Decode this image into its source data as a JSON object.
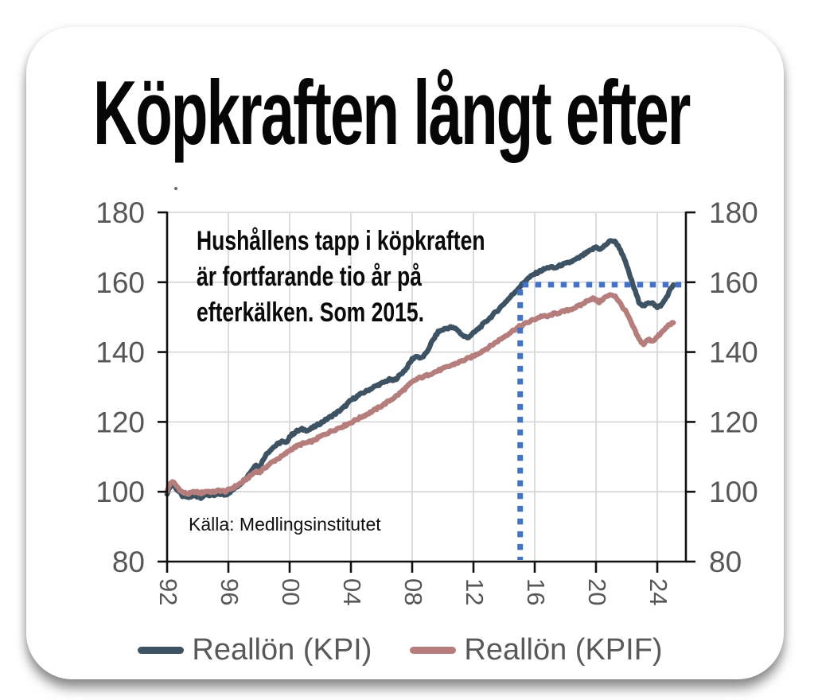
{
  "card": {
    "title": "Köpkraften långt efter",
    "annotation": "Hushållens tapp i köpkraften\när fortfarande tio år på\nefterkälken. Som 2015.",
    "source": "Källa: Medlingsinstitutet"
  },
  "chart_data": {
    "type": "line",
    "title": "Köpkraften långt efter",
    "annotation": "Hushållens tapp i köpkraften är fortfarande tio år på efterkälken. Som 2015.",
    "source": "Källa: Medlingsinstitutet",
    "x_range": [
      1992,
      2026
    ],
    "y_range": [
      80,
      180
    ],
    "grid": true,
    "legend_position": "bottom",
    "y_ticks": [
      80,
      100,
      120,
      140,
      160,
      180
    ],
    "x_ticks": [
      {
        "year": 1992,
        "label": "92"
      },
      {
        "year": 1996,
        "label": "96"
      },
      {
        "year": 2000,
        "label": "00"
      },
      {
        "year": 2004,
        "label": "04"
      },
      {
        "year": 2008,
        "label": "08"
      },
      {
        "year": 2012,
        "label": "12"
      },
      {
        "year": 2016,
        "label": "16"
      },
      {
        "year": 2020,
        "label": "20"
      },
      {
        "year": 2024,
        "label": "24"
      }
    ],
    "colors": {
      "kpi_line": "#3d5262",
      "kpif_line": "#b57e7c",
      "reference_dash": "#4472c4",
      "grid": "#d8d8d8",
      "axis": "#111111",
      "tick_labels": "#575757"
    },
    "reference_lines": {
      "style": "dashed",
      "color": "#4472c4",
      "x": 2015.05,
      "y": 159.3
    },
    "series": [
      {
        "name": "Reallön (KPI)",
        "color": "#3d5262",
        "points": [
          [
            1992.0,
            99.3
          ],
          [
            1992.2,
            101.6
          ],
          [
            1992.35,
            102.3
          ],
          [
            1992.6,
            100.9
          ],
          [
            1993.0,
            98.8
          ],
          [
            1993.4,
            98.4
          ],
          [
            1993.8,
            98.9
          ],
          [
            1994.2,
            98.4
          ],
          [
            1994.6,
            99.2
          ],
          [
            1995.0,
            98.8
          ],
          [
            1995.4,
            99.4
          ],
          [
            1995.8,
            99.1
          ],
          [
            1996.2,
            100.2
          ],
          [
            1996.6,
            101.6
          ],
          [
            1997.0,
            103.2
          ],
          [
            1997.4,
            105.4
          ],
          [
            1997.8,
            107.8
          ],
          [
            1998.05,
            107.2
          ],
          [
            1998.4,
            110.3
          ],
          [
            1998.8,
            112.3
          ],
          [
            1999.2,
            113.6
          ],
          [
            1999.5,
            114.4
          ],
          [
            1999.75,
            113.9
          ],
          [
            2000.0,
            115.8
          ],
          [
            2000.4,
            117.2
          ],
          [
            2000.8,
            117.9
          ],
          [
            2001.2,
            117.6
          ],
          [
            2001.5,
            118.3
          ],
          [
            2002.0,
            119.6
          ],
          [
            2002.5,
            121.0
          ],
          [
            2003.0,
            122.4
          ],
          [
            2003.5,
            124.0
          ],
          [
            2004.0,
            126.2
          ],
          [
            2004.5,
            127.6
          ],
          [
            2005.0,
            128.8
          ],
          [
            2005.5,
            130.0
          ],
          [
            2006.0,
            131.0
          ],
          [
            2006.5,
            132.1
          ],
          [
            2006.8,
            131.8
          ],
          [
            2007.2,
            133.4
          ],
          [
            2007.6,
            135.2
          ],
          [
            2008.0,
            138.0
          ],
          [
            2008.3,
            138.9
          ],
          [
            2008.55,
            138.1
          ],
          [
            2008.9,
            139.5
          ],
          [
            2009.3,
            143.0
          ],
          [
            2009.7,
            145.8
          ],
          [
            2010.1,
            146.6
          ],
          [
            2010.5,
            147.1
          ],
          [
            2010.9,
            146.6
          ],
          [
            2011.3,
            144.7
          ],
          [
            2011.6,
            144.1
          ],
          [
            2012.0,
            145.4
          ],
          [
            2012.5,
            147.4
          ],
          [
            2013.0,
            149.5
          ],
          [
            2013.5,
            151.6
          ],
          [
            2014.0,
            153.9
          ],
          [
            2014.5,
            156.2
          ],
          [
            2015.0,
            158.6
          ],
          [
            2015.5,
            160.9
          ],
          [
            2016.0,
            162.4
          ],
          [
            2016.5,
            163.5
          ],
          [
            2017.0,
            164.4
          ],
          [
            2017.3,
            164.0
          ],
          [
            2017.7,
            164.9
          ],
          [
            2018.1,
            165.4
          ],
          [
            2018.5,
            166.1
          ],
          [
            2018.9,
            167.0
          ],
          [
            2019.3,
            168.2
          ],
          [
            2019.7,
            169.2
          ],
          [
            2020.0,
            170.1
          ],
          [
            2020.3,
            169.4
          ],
          [
            2020.7,
            171.0
          ],
          [
            2021.0,
            172.0
          ],
          [
            2021.3,
            171.4
          ],
          [
            2021.6,
            169.3
          ],
          [
            2022.0,
            164.8
          ],
          [
            2022.4,
            159.4
          ],
          [
            2022.8,
            154.4
          ],
          [
            2023.1,
            153.2
          ],
          [
            2023.4,
            153.9
          ],
          [
            2023.7,
            154.3
          ],
          [
            2024.0,
            152.7
          ],
          [
            2024.3,
            153.6
          ],
          [
            2024.6,
            155.7
          ],
          [
            2024.85,
            157.9
          ],
          [
            2025.05,
            159.2
          ]
        ]
      },
      {
        "name": "Reallön (KPIF)",
        "color": "#b57e7c",
        "points": [
          [
            1992.0,
            100.1
          ],
          [
            1992.2,
            102.3
          ],
          [
            1992.35,
            103.0
          ],
          [
            1992.6,
            101.7
          ],
          [
            1993.0,
            99.8
          ],
          [
            1993.4,
            99.4
          ],
          [
            1993.8,
            100.0
          ],
          [
            1994.2,
            99.6
          ],
          [
            1994.6,
            100.2
          ],
          [
            1995.0,
            99.9
          ],
          [
            1995.4,
            100.4
          ],
          [
            1995.8,
            100.1
          ],
          [
            1996.2,
            100.9
          ],
          [
            1996.6,
            101.9
          ],
          [
            1997.0,
            103.0
          ],
          [
            1997.4,
            104.4
          ],
          [
            1997.8,
            105.9
          ],
          [
            1998.05,
            105.6
          ],
          [
            1998.4,
            106.9
          ],
          [
            1998.8,
            108.3
          ],
          [
            1999.2,
            109.4
          ],
          [
            1999.6,
            110.4
          ],
          [
            2000.0,
            111.9
          ],
          [
            2000.4,
            112.9
          ],
          [
            2000.8,
            113.7
          ],
          [
            2001.2,
            114.1
          ],
          [
            2001.6,
            114.7
          ],
          [
            2002.0,
            115.8
          ],
          [
            2002.5,
            116.9
          ],
          [
            2003.0,
            117.9
          ],
          [
            2003.5,
            118.8
          ],
          [
            2004.0,
            119.8
          ],
          [
            2004.5,
            121.0
          ],
          [
            2005.0,
            122.1
          ],
          [
            2005.5,
            123.3
          ],
          [
            2006.0,
            124.6
          ],
          [
            2006.5,
            126.0
          ],
          [
            2007.0,
            127.5
          ],
          [
            2007.5,
            129.4
          ],
          [
            2008.0,
            131.4
          ],
          [
            2008.4,
            132.5
          ],
          [
            2008.8,
            133.0
          ],
          [
            2009.2,
            133.8
          ],
          [
            2009.6,
            134.5
          ],
          [
            2010.0,
            135.2
          ],
          [
            2010.5,
            136.1
          ],
          [
            2011.0,
            137.0
          ],
          [
            2011.5,
            137.9
          ],
          [
            2012.0,
            138.8
          ],
          [
            2012.5,
            140.1
          ],
          [
            2013.0,
            141.4
          ],
          [
            2013.5,
            142.9
          ],
          [
            2014.0,
            144.4
          ],
          [
            2014.5,
            145.9
          ],
          [
            2015.0,
            147.3
          ],
          [
            2015.5,
            148.4
          ],
          [
            2016.0,
            149.4
          ],
          [
            2016.5,
            150.4
          ],
          [
            2016.8,
            150.1
          ],
          [
            2017.2,
            150.9
          ],
          [
            2017.7,
            151.4
          ],
          [
            2018.1,
            151.9
          ],
          [
            2018.5,
            152.5
          ],
          [
            2019.0,
            153.4
          ],
          [
            2019.5,
            154.9
          ],
          [
            2019.8,
            155.4
          ],
          [
            2020.2,
            154.3
          ],
          [
            2020.6,
            155.7
          ],
          [
            2021.0,
            156.4
          ],
          [
            2021.25,
            156.1
          ],
          [
            2021.6,
            153.8
          ],
          [
            2022.0,
            151.2
          ],
          [
            2022.4,
            147.4
          ],
          [
            2022.8,
            143.7
          ],
          [
            2023.1,
            142.2
          ],
          [
            2023.4,
            143.6
          ],
          [
            2023.7,
            143.2
          ],
          [
            2024.0,
            144.3
          ],
          [
            2024.4,
            146.1
          ],
          [
            2024.8,
            148.0
          ],
          [
            2025.05,
            148.4
          ]
        ]
      }
    ]
  }
}
